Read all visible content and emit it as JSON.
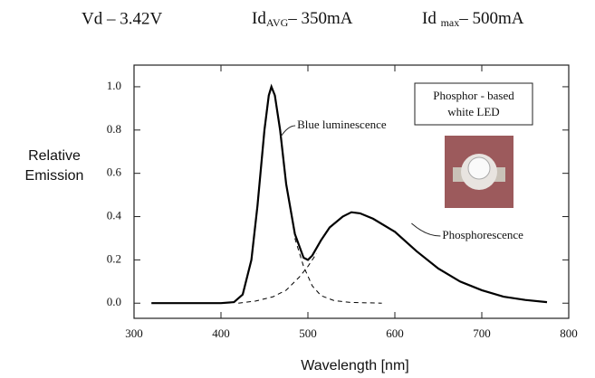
{
  "chart_data": {
    "type": "line",
    "header": [
      {
        "text": "Vd – 3.42V"
      },
      {
        "text": "Id",
        "sub": "AVG",
        "rest": "– 350mA"
      },
      {
        "text": "Id ",
        "sub": "max",
        "rest": "– 500mA"
      }
    ],
    "y_label": [
      "Relative",
      "Emission"
    ],
    "x_label": "Wavelength [nm]",
    "xlim": [
      300,
      800
    ],
    "xticks": [
      300,
      400,
      500,
      600,
      700,
      800
    ],
    "ylim": [
      -0.07,
      1.1
    ],
    "yticks": [
      {
        "value": 0,
        "label": "0.0"
      },
      0.2,
      0.4,
      0.6,
      0.8,
      {
        "value": 1,
        "label": "1.0"
      }
    ],
    "series": [
      {
        "color": "#000000",
        "dash": false,
        "x": [
          320,
          400,
          415,
          425,
          435,
          442,
          450,
          455,
          458,
          462,
          468,
          475,
          485,
          495,
          500,
          505,
          515,
          525,
          540,
          550,
          560,
          575,
          600,
          625,
          650,
          675,
          700,
          725,
          750,
          775
        ],
        "values": [
          0,
          0,
          0.005,
          0.04,
          0.2,
          0.45,
          0.8,
          0.96,
          1.0,
          0.96,
          0.8,
          0.55,
          0.32,
          0.21,
          0.2,
          0.22,
          0.29,
          0.35,
          0.4,
          0.42,
          0.415,
          0.39,
          0.33,
          0.24,
          0.16,
          0.1,
          0.06,
          0.03,
          0.015,
          0.005
        ]
      },
      {
        "color": "#000000",
        "dash": true,
        "x": [
          485,
          495,
          505,
          515,
          530,
          550,
          585
        ],
        "values": [
          0.3,
          0.17,
          0.08,
          0.035,
          0.012,
          0.003,
          0
        ]
      },
      {
        "color": "#000000",
        "dash": true,
        "x": [
          420,
          440,
          460,
          475,
          490,
          500,
          510
        ],
        "values": [
          0,
          0.01,
          0.03,
          0.06,
          0.12,
          0.17,
          0.23
        ]
      }
    ],
    "annotations": [
      {
        "text": "Blue luminescence",
        "x": 473,
        "y": 0.82
      },
      {
        "text": "Phosphorescence",
        "x": 640,
        "y": 0.31
      }
    ],
    "box_text": [
      "Phosphor - based",
      "white LED"
    ]
  }
}
